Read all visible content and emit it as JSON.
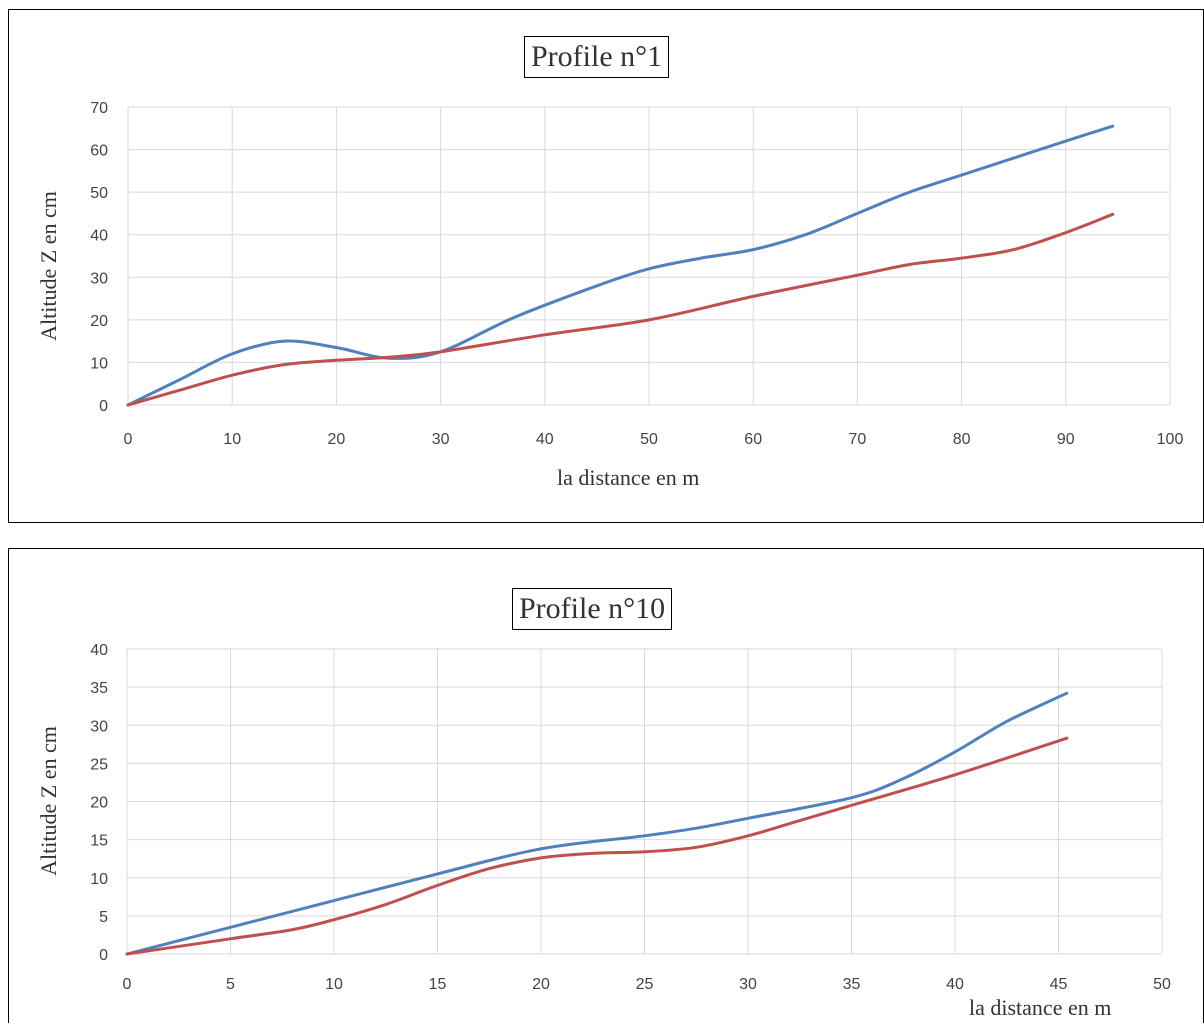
{
  "chart_data": [
    {
      "type": "line",
      "title": "Profile n°1",
      "xlabel": "la distance en m",
      "ylabel": "Altitude Z en cm",
      "xlim": [
        0,
        100
      ],
      "ylim": [
        0,
        70
      ],
      "xticks": [
        "0",
        "10",
        "20",
        "30",
        "40",
        "50",
        "60",
        "70",
        "80",
        "90",
        "100"
      ],
      "yticks": [
        "0",
        "10",
        "20",
        "30",
        "40",
        "50",
        "60",
        "70"
      ],
      "grid": true,
      "series": [
        {
          "color": "#4F81BD",
          "points": [
            [
              0,
              0
            ],
            [
              5,
              6
            ],
            [
              10,
              12
            ],
            [
              15,
              15
            ],
            [
              20,
              13.5
            ],
            [
              25,
              11
            ],
            [
              30,
              12.5
            ],
            [
              37,
              20.5
            ],
            [
              45,
              28
            ],
            [
              50,
              32
            ],
            [
              55,
              34.5
            ],
            [
              60,
              36.5
            ],
            [
              65,
              40
            ],
            [
              70,
              45
            ],
            [
              75,
              50
            ],
            [
              80,
              54
            ],
            [
              85,
              58
            ],
            [
              90,
              62
            ],
            [
              94.5,
              65.5
            ]
          ]
        },
        {
          "color": "#C0504D",
          "points": [
            [
              0,
              0
            ],
            [
              5,
              3.5
            ],
            [
              10,
              7
            ],
            [
              15,
              9.5
            ],
            [
              20,
              10.5
            ],
            [
              25,
              11.2
            ],
            [
              30,
              12.5
            ],
            [
              40,
              16.5
            ],
            [
              50,
              20
            ],
            [
              60,
              25.5
            ],
            [
              70,
              30.5
            ],
            [
              75,
              33
            ],
            [
              80,
              34.5
            ],
            [
              85,
              36.5
            ],
            [
              90,
              40.5
            ],
            [
              94.5,
              44.8
            ]
          ]
        }
      ]
    },
    {
      "type": "line",
      "title": "Profile n°10",
      "xlabel": "la distance en m",
      "ylabel": "Altitude Z en cm",
      "xlim": [
        0,
        50
      ],
      "ylim": [
        0,
        40
      ],
      "xticks": [
        "0",
        "5",
        "10",
        "15",
        "20",
        "25",
        "30",
        "35",
        "40",
        "45",
        "50"
      ],
      "yticks": [
        "0",
        "5",
        "10",
        "15",
        "20",
        "25",
        "30",
        "35",
        "40"
      ],
      "grid": true,
      "series": [
        {
          "color": "#4F81BD",
          "points": [
            [
              0,
              0
            ],
            [
              5,
              3.5
            ],
            [
              10,
              7
            ],
            [
              15,
              10.5
            ],
            [
              20,
              13.8
            ],
            [
              25,
              15.5
            ],
            [
              27.5,
              16.5
            ],
            [
              30,
              17.8
            ],
            [
              35,
              20.5
            ],
            [
              37.5,
              23
            ],
            [
              40,
              26.5
            ],
            [
              42.5,
              30.5
            ],
            [
              45.4,
              34.2
            ]
          ]
        },
        {
          "color": "#C0504D",
          "points": [
            [
              0,
              0
            ],
            [
              5,
              2
            ],
            [
              8,
              3.2
            ],
            [
              10,
              4.5
            ],
            [
              12.5,
              6.5
            ],
            [
              15,
              9
            ],
            [
              17.5,
              11.2
            ],
            [
              20,
              12.6
            ],
            [
              22.5,
              13.2
            ],
            [
              25,
              13.4
            ],
            [
              27.5,
              14
            ],
            [
              30,
              15.5
            ],
            [
              32.5,
              17.5
            ],
            [
              35,
              19.5
            ],
            [
              40,
              23.5
            ],
            [
              45.4,
              28.3
            ]
          ]
        }
      ]
    }
  ]
}
